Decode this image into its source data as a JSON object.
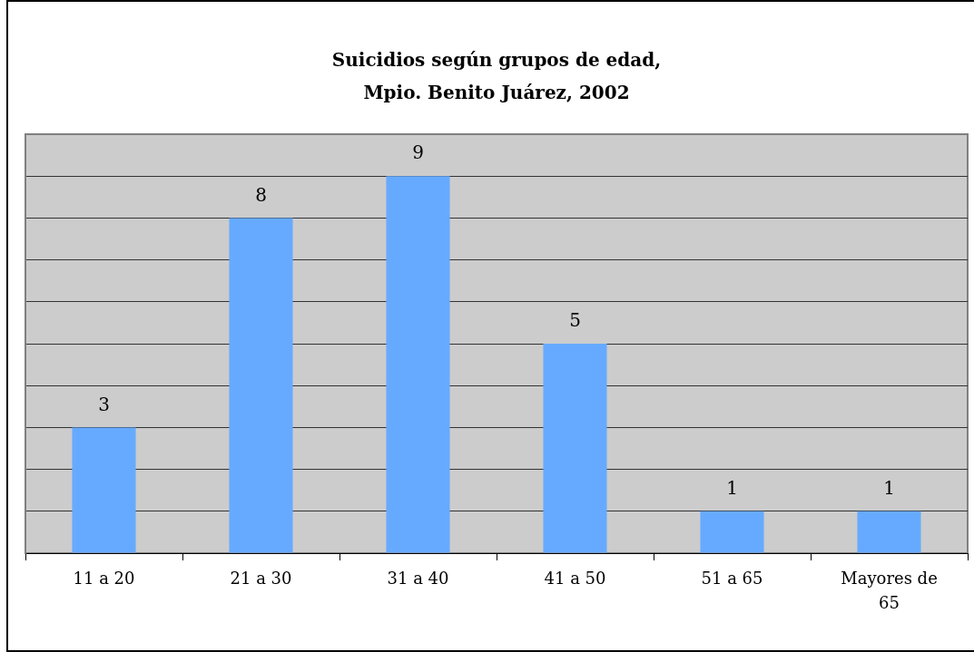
{
  "chart_data": {
    "type": "bar",
    "title": "Suicidios según grupos de edad, Mpio. Benito Juárez, 2002",
    "categories": [
      "11 a 20",
      "21 a 30",
      "31 a 40",
      "41 a 50",
      "51 a 65",
      "Mayores de 65"
    ],
    "values": [
      3,
      8,
      9,
      5,
      1,
      1
    ],
    "color": "#66aaff",
    "ylim": [
      0,
      10
    ],
    "yticks": [
      {
        "value": 0,
        "label": null
      },
      {
        "value": 1,
        "label": null
      },
      {
        "value": 2,
        "label": null
      },
      {
        "value": 3,
        "label": null
      },
      {
        "value": 4,
        "label": null
      },
      {
        "value": 5,
        "label": null
      },
      {
        "value": 6,
        "label": null
      },
      {
        "value": 7,
        "label": null
      },
      {
        "value": 8,
        "label": null
      },
      {
        "value": 9,
        "label": null
      },
      {
        "value": 10,
        "label": null
      }
    ],
    "grid": "y",
    "tick_labels": "x",
    "data_labels": true
  }
}
